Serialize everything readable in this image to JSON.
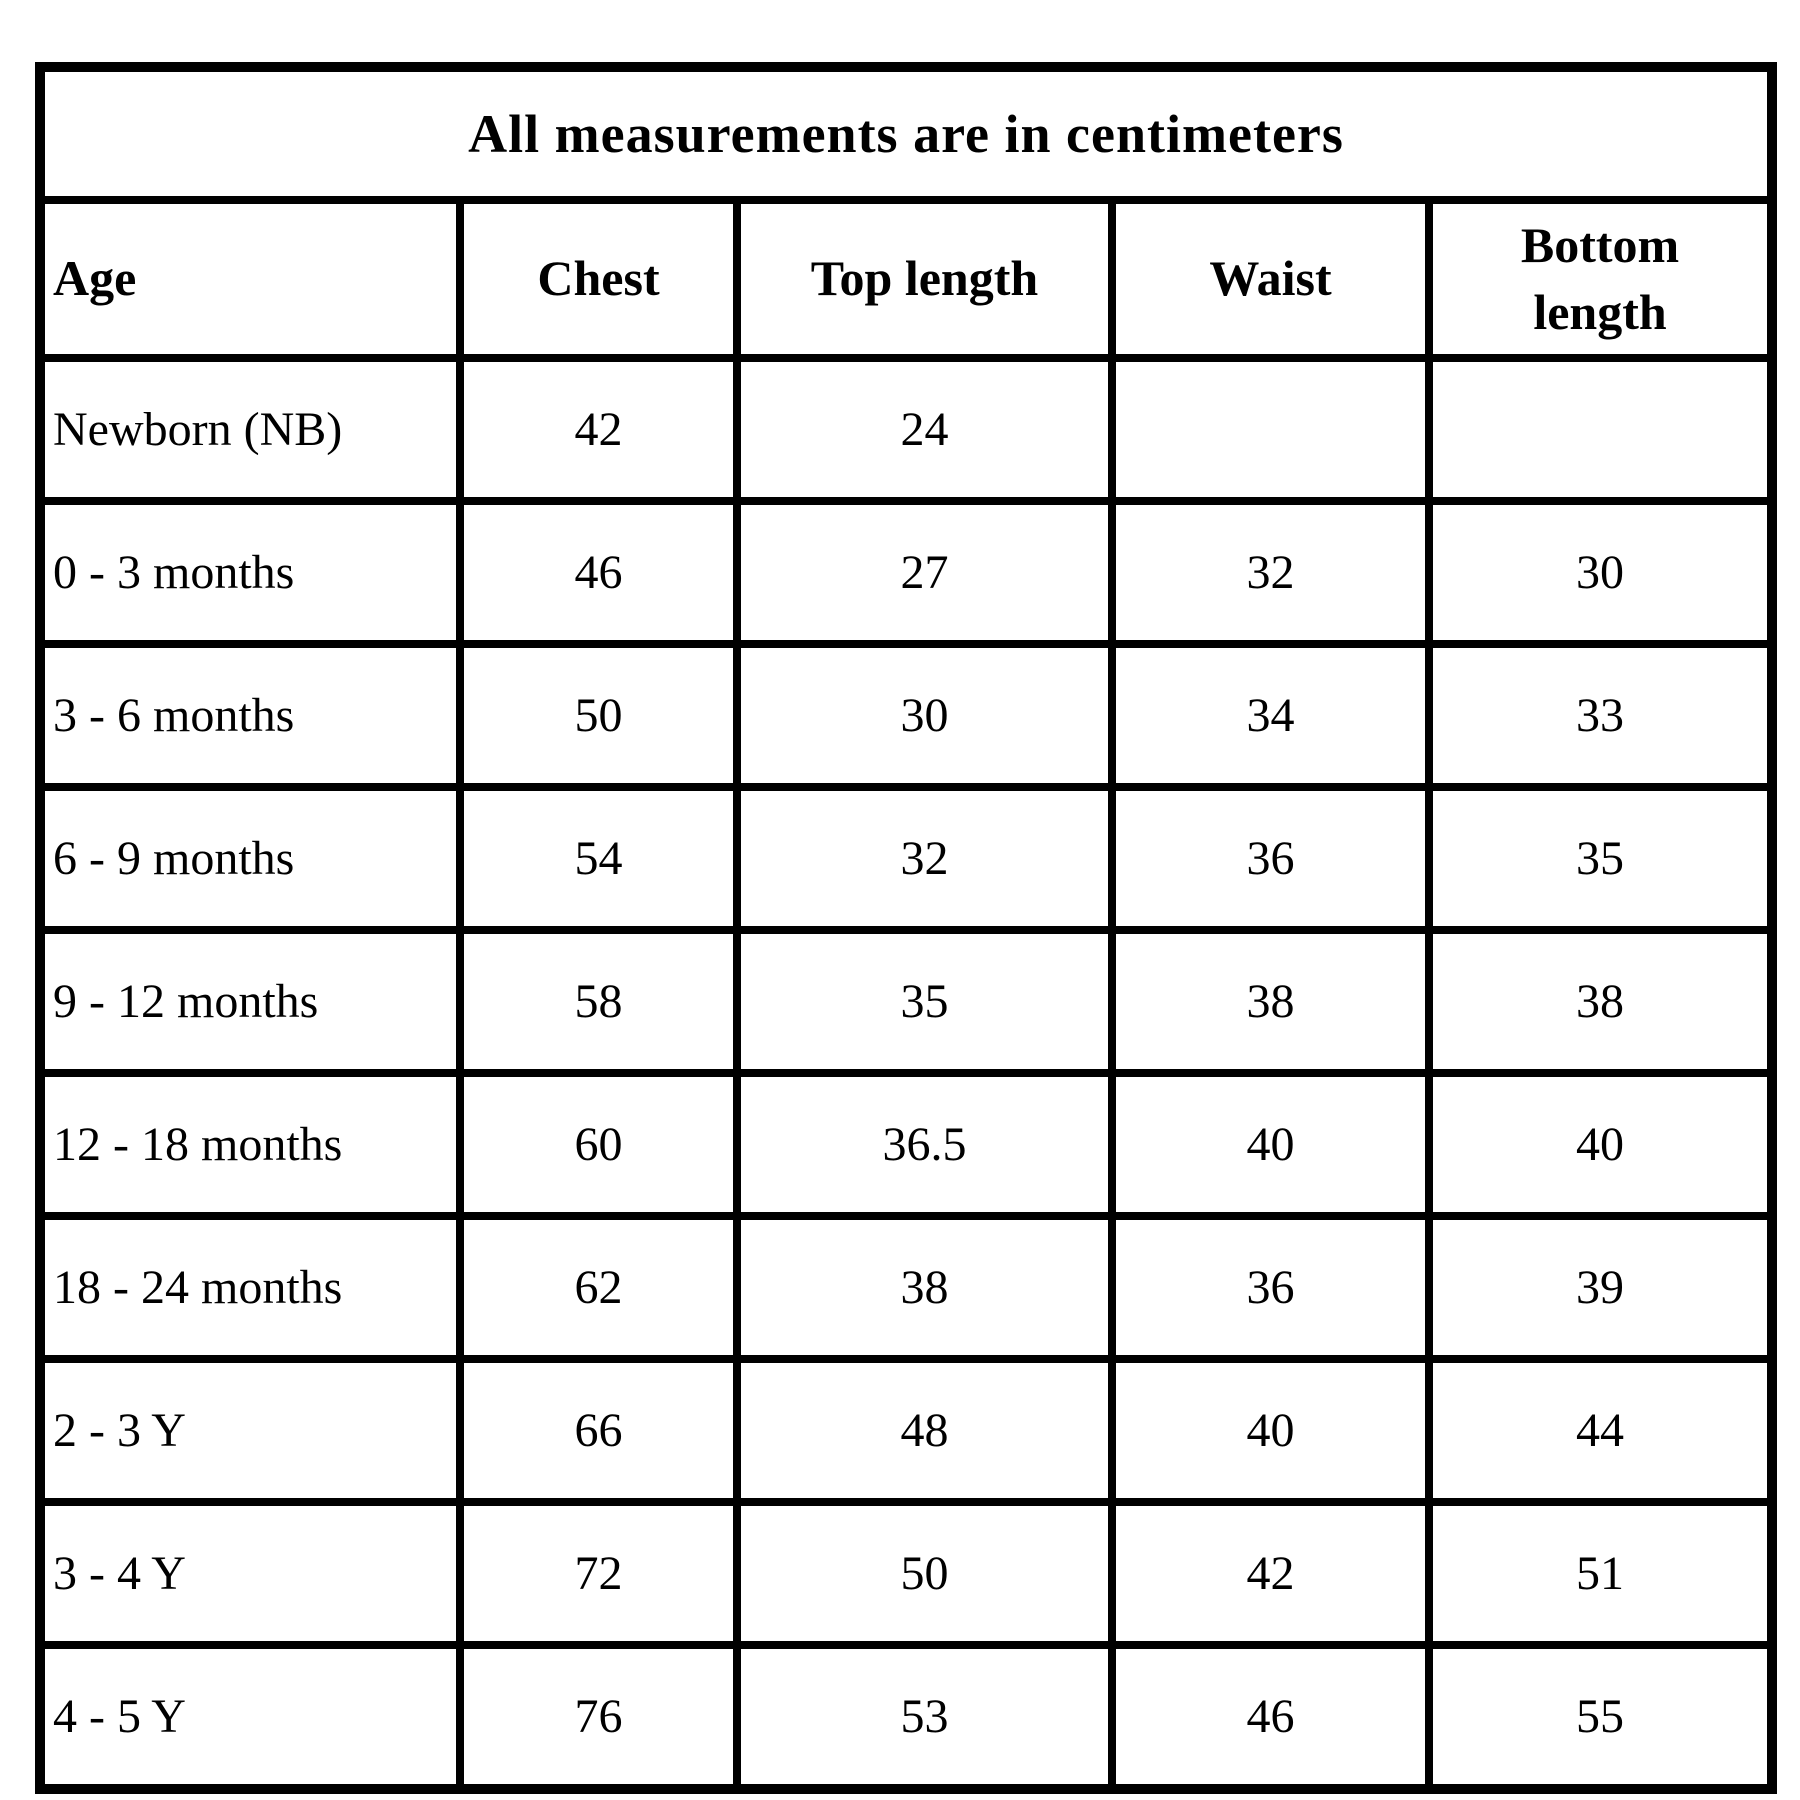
{
  "chart_data": {
    "type": "table",
    "title": "All measurements are in centimeters",
    "columns": [
      "Age",
      "Chest",
      "Top length",
      "Waist",
      "Bottom length"
    ],
    "rows": [
      [
        "Newborn (NB)",
        "42",
        "24",
        "",
        ""
      ],
      [
        "0 - 3 months",
        "46",
        "27",
        "32",
        "30"
      ],
      [
        "3 - 6 months",
        "50",
        "30",
        "34",
        "33"
      ],
      [
        "6 - 9 months",
        "54",
        "32",
        "36",
        "35"
      ],
      [
        "9 - 12 months",
        "58",
        "35",
        "38",
        "38"
      ],
      [
        "12 - 18 months",
        "60",
        "36.5",
        "40",
        "40"
      ],
      [
        "18 - 24 months",
        "62",
        "38",
        "36",
        "39"
      ],
      [
        "2 - 3 Y",
        "66",
        "48",
        "40",
        "44"
      ],
      [
        "3 - 4 Y",
        "72",
        "50",
        "42",
        "51"
      ],
      [
        "4 - 5 Y",
        "76",
        "53",
        "46",
        "55"
      ]
    ],
    "layout": {
      "grid": "on",
      "border_color": "#000000",
      "text_color": "#000000",
      "background_color": "#ffffff"
    }
  }
}
